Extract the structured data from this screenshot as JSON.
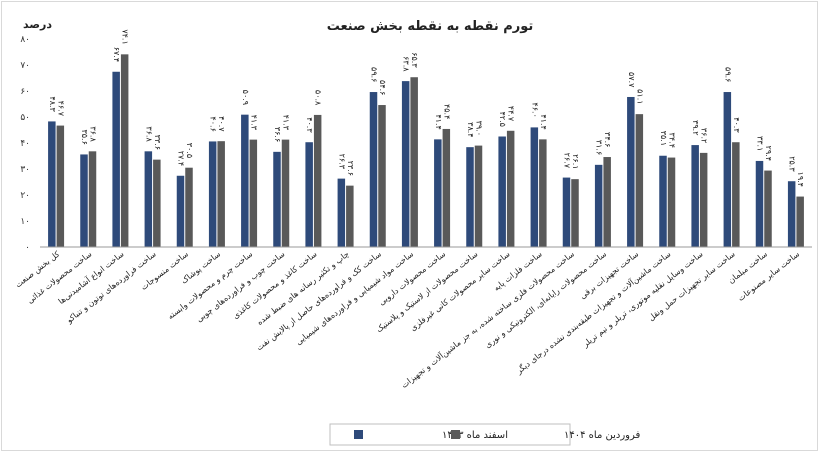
{
  "chart_data": {
    "type": "bar",
    "title": "تورم نقطه به نقطه بخش صنعت",
    "ylabel": "درصد",
    "ylim": [
      0,
      80
    ],
    "yticks": [
      0,
      10,
      20,
      30,
      40,
      50,
      60,
      70,
      80
    ],
    "ytick_labels": [
      "۰",
      "۱۰",
      "۲۰",
      "۳۰",
      "۴۰",
      "۵۰",
      "۶۰",
      "۷۰",
      "۸۰"
    ],
    "grid": false,
    "legend_position": "bottom",
    "categories": [
      "کل بخش صنعت",
      "ساخت محصولات غذائی",
      "ساخت انواع آشامیدنی‌ها",
      "ساخت فراورده‌های توتون و تنباکو",
      "ساخت منسوجات",
      "ساخت پوشاک",
      "ساخت چرم و محصولات وابسته",
      "ساخت چوب و فراورده‌های چوبی",
      "ساخت کاغذ و محصولات کاغذی",
      "چاپ و تکثیر رسانه های ضبط شده",
      "ساخت کک و فراورده‌های حاصل از پالایش نفت",
      "ساخت مواد شیمیایی و فراورده‌های شیمیایی",
      "ساخت محصولات دارویی",
      "ساخت محصولات از لاستیک و پلاستیک",
      "ساخت سایر محصولات کانی غیرفلزی",
      "ساخت فلزات پایه",
      "ساخت محصولات فلزی ساخته شده، به جز ماشین‌آلات و تجهیزات",
      "ساخت محصولات رایانه‌ای، الکترونیکی و نوری",
      "ساخت تجهیزات برقی",
      "ساخت ماشین‌آلات و تجهیزات طبقه‌بندی نشده درجای دیگر",
      "ساخت وسایل نقلیه موتوری، تریلر و نیم تریلر",
      "ساخت سایر تجهیزات حمل ونقل",
      "ساخت مبلمان",
      "ساخت سایر مصنوعات"
    ],
    "series": [
      {
        "name": "اسفند ماه ۱۴۰۳",
        "color": "#2e4a7a",
        "values": [
          48.3,
          35.6,
          67.4,
          36.8,
          27.4,
          40.6,
          50.9,
          36.6,
          40.3,
          26.3,
          59.6,
          63.8,
          41.4,
          38.4,
          42.5,
          46.0,
          26.7,
          31.6,
          57.7,
          35.1,
          39.2,
          59.6,
          33.1,
          25.3
        ],
        "labels": [
          "۴۸.۳",
          "۳۵.۶",
          "۶۷.۴",
          "۳۶.۸",
          "۲۷.۴",
          "۴۰.۶",
          "۵۰.۹",
          "۳۶.۶",
          "۴۰.۳",
          "۲۶.۳",
          "۵۹.۶",
          "۶۳.۸",
          "۴۱.۴",
          "۳۸.۴",
          "۴۲.۵",
          "۴۶.۰",
          "۲۶.۷",
          "۳۱.۶",
          "۵۷.۷",
          "۳۵.۱",
          "۳۹.۲",
          "۵۹.۶",
          "۳۳.۱",
          "۲۵.۳"
        ]
      },
      {
        "name": "فروردین ماه ۱۴۰۴",
        "color": "#595959",
        "values": [
          46.7,
          36.8,
          74.1,
          33.6,
          30.5,
          40.7,
          41.3,
          41.3,
          50.8,
          23.6,
          54.6,
          65.3,
          45.4,
          39.0,
          44.7,
          41.4,
          26.1,
          34.6,
          51.1,
          34.4,
          36.2,
          40.3,
          29.4,
          19.4
        ],
        "labels": [
          "۴۶.۷",
          "۳۶.۸",
          "۷۴.۱",
          "۳۳.۶",
          "۳۰.۵",
          "۴۰.۷",
          "۴۱.۳",
          "۴۱.۳",
          "۵۰.۸",
          "۲۳.۶",
          "۵۴.۶",
          "۶۵.۳",
          "۴۵.۴",
          "۳۹.۰",
          "۴۴.۷",
          "۴۱.۴",
          "۲۶.۱",
          "۳۴.۶",
          "۵۱.۱",
          "۳۴.۴",
          "۳۶.۲",
          "۴۰.۳",
          "۲۹.۴",
          "۱۹.۴"
        ]
      }
    ]
  }
}
